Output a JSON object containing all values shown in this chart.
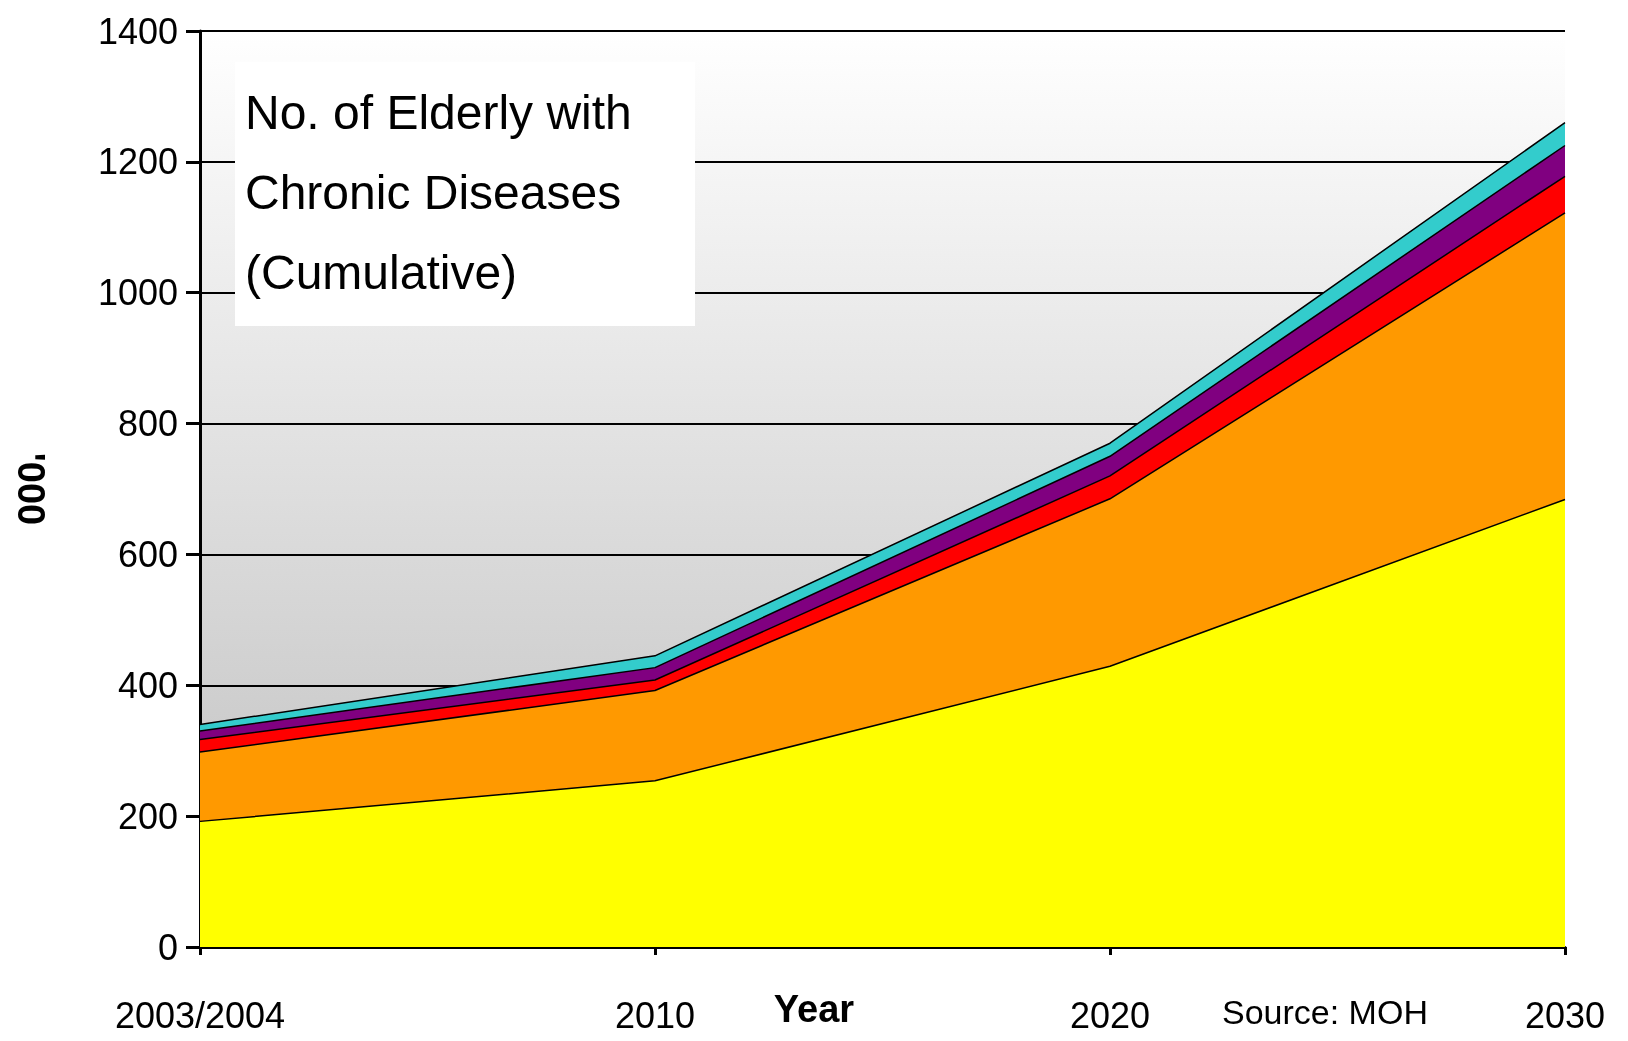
{
  "chart_data": {
    "type": "area",
    "stacked": true,
    "title": "No. of Elderly with Chronic Diseases (Cumulative)",
    "xlabel": "Year",
    "ylabel": "'000",
    "annotations": [
      "Source: MOH"
    ],
    "categories": [
      "2003/2004",
      "2010",
      "2020",
      "2030"
    ],
    "series": [
      {
        "color": "#ffff00",
        "values": [
          192,
          254,
          429,
          684
        ]
      },
      {
        "color": "#ff9900",
        "values": [
          106,
          138,
          256,
          438
        ]
      },
      {
        "color": "#ff0000",
        "values": [
          19,
          16,
          35,
          56
        ]
      },
      {
        "color": "#800080",
        "values": [
          13,
          19,
          30,
          47
        ]
      },
      {
        "color": "#33cccc",
        "values": [
          10,
          18,
          20,
          35
        ]
      }
    ],
    "ylim": [
      0,
      1400
    ],
    "yticks": [
      0,
      200,
      400,
      600,
      800,
      1000,
      1200,
      1400
    ],
    "grid": "y",
    "marker": "none"
  }
}
